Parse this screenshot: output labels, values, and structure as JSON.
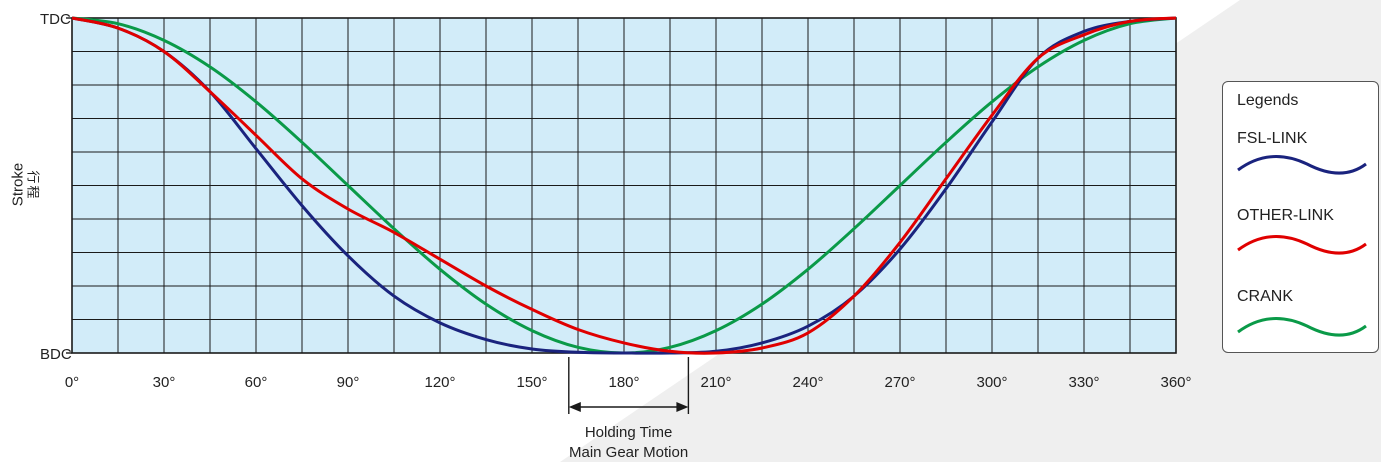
{
  "chart_data": {
    "type": "line",
    "xlabel_ticks": [
      "0°",
      "30°",
      "60°",
      "90°",
      "120°",
      "150°",
      "180°",
      "210°",
      "240°",
      "270°",
      "300°",
      "330°",
      "360°"
    ],
    "xlim": [
      0,
      360
    ],
    "ylabels": {
      "top": "TDC",
      "bottom": "BDC"
    },
    "ylabel": "Stroke",
    "ylabel_cn": "行程",
    "ylim": [
      0,
      1
    ],
    "grid": true,
    "plot_bg": "#d2ecf9",
    "annotation": {
      "range": [
        162,
        201
      ],
      "line1": "Holding  Time",
      "line2": "Main  Gear  Motion"
    },
    "series": [
      {
        "name": "FSL-LINK",
        "color": "#1a237e",
        "points": [
          [
            0,
            1
          ],
          [
            15,
            0.97
          ],
          [
            30,
            0.9
          ],
          [
            45,
            0.78
          ],
          [
            60,
            0.61
          ],
          [
            75,
            0.44
          ],
          [
            90,
            0.29
          ],
          [
            105,
            0.17
          ],
          [
            120,
            0.09
          ],
          [
            135,
            0.04
          ],
          [
            150,
            0.012
          ],
          [
            165,
            0.002
          ],
          [
            180,
            0
          ],
          [
            195,
            0
          ],
          [
            210,
            0.005
          ],
          [
            225,
            0.03
          ],
          [
            240,
            0.08
          ],
          [
            255,
            0.17
          ],
          [
            270,
            0.31
          ],
          [
            285,
            0.49
          ],
          [
            300,
            0.69
          ],
          [
            315,
            0.88
          ],
          [
            330,
            0.96
          ],
          [
            345,
            0.99
          ],
          [
            360,
            1
          ]
        ]
      },
      {
        "name": "OTHER-LINK",
        "color": "#e00000",
        "points": [
          [
            0,
            1
          ],
          [
            15,
            0.97
          ],
          [
            30,
            0.9
          ],
          [
            45,
            0.78
          ],
          [
            60,
            0.65
          ],
          [
            75,
            0.52
          ],
          [
            90,
            0.43
          ],
          [
            105,
            0.36
          ],
          [
            120,
            0.28
          ],
          [
            135,
            0.2
          ],
          [
            150,
            0.13
          ],
          [
            165,
            0.07
          ],
          [
            180,
            0.03
          ],
          [
            195,
            0.005
          ],
          [
            210,
            0
          ],
          [
            225,
            0.015
          ],
          [
            240,
            0.06
          ],
          [
            255,
            0.17
          ],
          [
            270,
            0.33
          ],
          [
            285,
            0.52
          ],
          [
            300,
            0.71
          ],
          [
            315,
            0.88
          ],
          [
            330,
            0.95
          ],
          [
            345,
            0.99
          ],
          [
            360,
            1
          ]
        ]
      },
      {
        "name": "CRANK",
        "color": "#0a9a48",
        "points": [
          [
            0,
            1
          ],
          [
            15,
            0.983
          ],
          [
            30,
            0.933
          ],
          [
            45,
            0.854
          ],
          [
            60,
            0.75
          ],
          [
            75,
            0.629
          ],
          [
            90,
            0.5
          ],
          [
            105,
            0.371
          ],
          [
            120,
            0.25
          ],
          [
            135,
            0.146
          ],
          [
            150,
            0.067
          ],
          [
            165,
            0.017
          ],
          [
            180,
            0
          ],
          [
            195,
            0.017
          ],
          [
            210,
            0.067
          ],
          [
            225,
            0.146
          ],
          [
            240,
            0.25
          ],
          [
            255,
            0.371
          ],
          [
            270,
            0.5
          ],
          [
            285,
            0.629
          ],
          [
            300,
            0.75
          ],
          [
            315,
            0.854
          ],
          [
            330,
            0.933
          ],
          [
            345,
            0.983
          ],
          [
            360,
            1
          ]
        ]
      }
    ]
  },
  "legend": {
    "title": "Legends",
    "items": [
      "FSL-LINK",
      "OTHER-LINK",
      "CRANK"
    ]
  }
}
